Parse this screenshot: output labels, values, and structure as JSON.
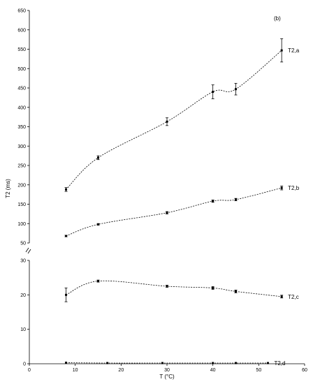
{
  "chart_data": {
    "type": "line",
    "panel_label": "(b)",
    "xlabel": "T (°C)",
    "ylabel": "T2 (ms)",
    "xlim": [
      0,
      60
    ],
    "xticks": [
      0,
      10,
      20,
      30,
      40,
      50,
      60
    ],
    "upper_panel": {
      "ylim": [
        50,
        650
      ],
      "yticks": [
        50,
        100,
        150,
        200,
        250,
        300,
        350,
        400,
        450,
        500,
        550,
        600,
        650
      ]
    },
    "lower_panel": {
      "ylim": [
        0,
        30
      ],
      "yticks": [
        0,
        10,
        20,
        30
      ]
    },
    "axis_break": "//",
    "series": [
      {
        "name": "T2,a",
        "panel": "upper",
        "x": [
          8,
          15,
          30,
          40,
          45,
          55
        ],
        "y": [
          188,
          270,
          363,
          440,
          447,
          547
        ],
        "err": [
          5,
          5,
          10,
          18,
          15,
          30
        ]
      },
      {
        "name": "T2,b",
        "panel": "upper",
        "x": [
          8,
          15,
          30,
          40,
          45,
          55
        ],
        "y": [
          68,
          98,
          128,
          158,
          162,
          192
        ],
        "err": [
          2,
          2,
          3,
          3,
          3,
          5
        ]
      },
      {
        "name": "T2,c",
        "panel": "lower",
        "x": [
          8,
          15,
          30,
          40,
          45,
          55
        ],
        "y": [
          20,
          24,
          22.5,
          22,
          21,
          19.5
        ],
        "err": [
          2,
          0.3,
          0.3,
          0.4,
          0.4,
          0.4
        ]
      },
      {
        "name": "T2,d",
        "panel": "lower",
        "x": [
          8,
          17,
          29,
          40,
          45,
          52
        ],
        "y": [
          0.3,
          0.2,
          0.2,
          0.2,
          0.2,
          0.2
        ],
        "err": [
          0,
          0,
          0,
          0,
          0,
          0
        ]
      }
    ]
  }
}
